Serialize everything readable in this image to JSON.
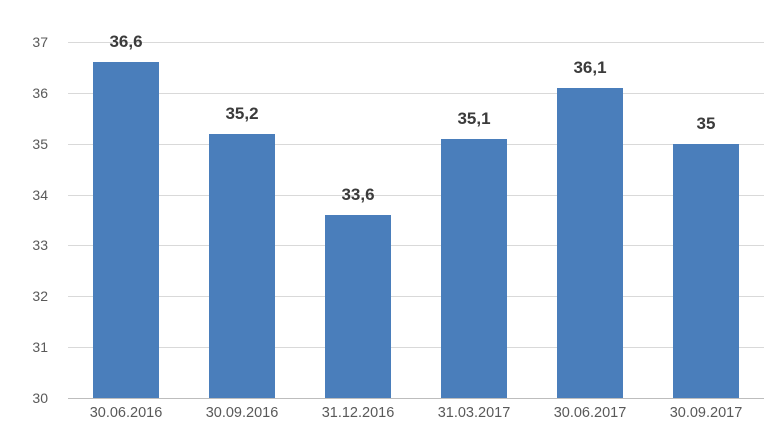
{
  "chart_data": {
    "type": "bar",
    "title": "",
    "xlabel": "",
    "ylabel": "",
    "categories": [
      "30.06.2016",
      "30.09.2016",
      "31.12.2016",
      "31.03.2017",
      "30.06.2017",
      "30.09.2017"
    ],
    "values": [
      36.6,
      35.2,
      33.6,
      35.1,
      36.1,
      35
    ],
    "value_labels": [
      "36,6",
      "35,2",
      "33,6",
      "35,1",
      "36,1",
      "35"
    ],
    "ylim": [
      30,
      37
    ],
    "yticks": [
      30,
      31,
      32,
      33,
      34,
      35,
      36,
      37
    ],
    "grid": true,
    "legend_position": "none",
    "colors": {
      "bar": "#4a7ebb",
      "gridline": "#d9d9d9",
      "baseline": "#bdbdbd",
      "tick_text": "#595959",
      "value_text": "#3b3b3b",
      "background": "#ffffff"
    }
  }
}
